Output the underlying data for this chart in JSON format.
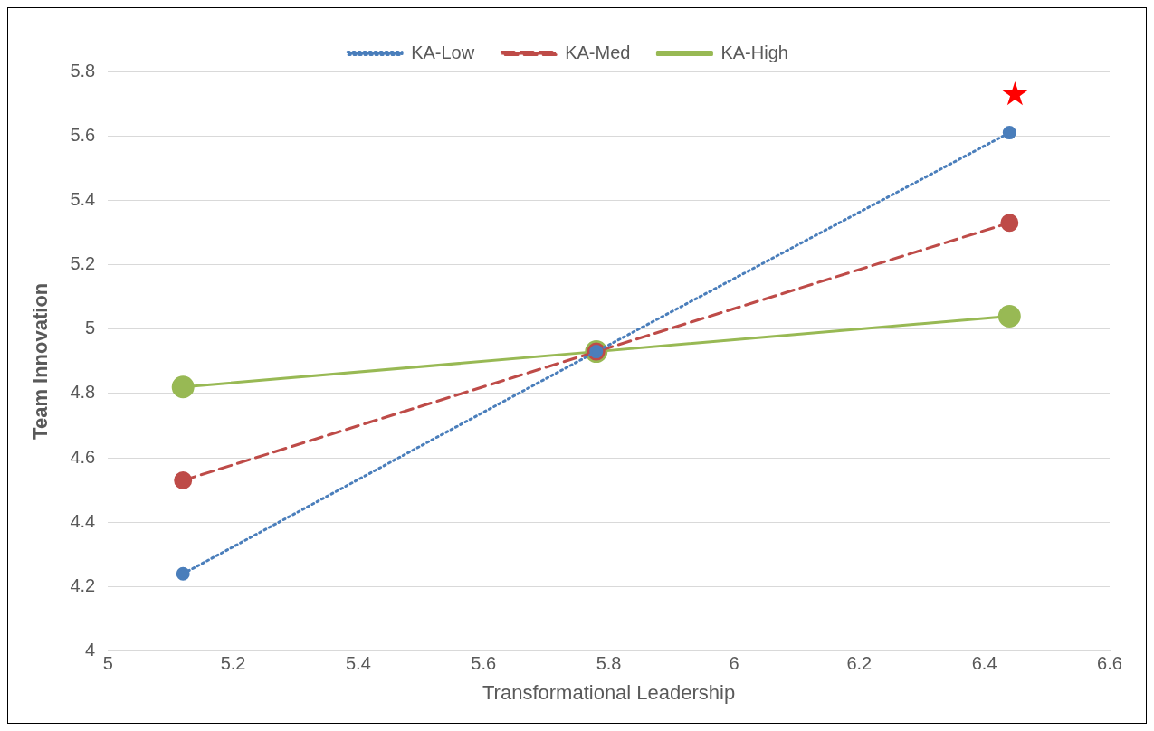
{
  "chart_data": {
    "type": "line",
    "xlabel": "Transformational Leadership",
    "ylabel": "Team Innovation",
    "x": [
      5.12,
      5.78,
      6.44
    ],
    "series": [
      {
        "name": "KA-Low",
        "color": "#4a7ebb",
        "values": [
          4.24,
          4.93,
          5.61
        ],
        "line_style": "dotted"
      },
      {
        "name": "KA-Med",
        "color": "#be4b48",
        "values": [
          4.53,
          4.93,
          5.33
        ],
        "line_style": "dashed"
      },
      {
        "name": "KA-High",
        "color": "#98b954",
        "values": [
          4.82,
          4.93,
          5.04
        ],
        "line_style": "solid"
      }
    ],
    "xlim": [
      5,
      6.6
    ],
    "xticks": [
      5,
      5.2,
      5.4,
      5.6,
      5.8,
      6,
      6.2,
      6.4,
      6.6
    ],
    "ylim": [
      4,
      5.8
    ],
    "yticks": [
      4,
      4.2,
      4.4,
      4.6,
      4.8,
      5,
      5.2,
      5.4,
      5.6,
      5.8
    ],
    "grid": "y",
    "legend": "top",
    "marker": "circle",
    "annotations": [
      "★"
    ]
  }
}
